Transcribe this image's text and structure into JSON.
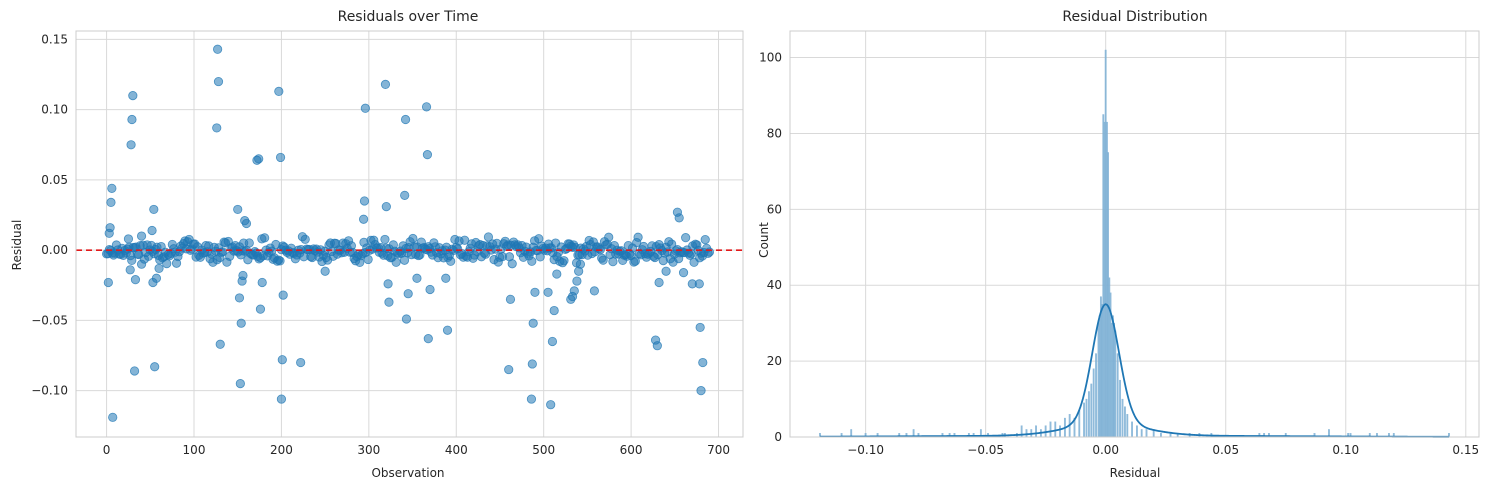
{
  "chart_data": [
    {
      "type": "scatter",
      "title": "Residuals over Time",
      "xlabel": "Observation",
      "ylabel": "Residual",
      "xlim": [
        -35,
        728
      ],
      "ylim": [
        -0.133,
        0.156
      ],
      "xticks": [
        0,
        100,
        200,
        300,
        400,
        500,
        600,
        700
      ],
      "yticks": [
        -0.1,
        -0.05,
        0.0,
        0.05,
        0.1,
        0.15
      ],
      "ytick_labels": [
        "−0.10",
        "−0.05",
        "0.00",
        "0.05",
        "0.10",
        "0.15"
      ],
      "grid": true,
      "reference_line": {
        "y": 0.0,
        "color": "#e41a1c",
        "style": "dashed"
      },
      "point_color": "#1f77b4",
      "outliers": [
        [
          2,
          -0.023
        ],
        [
          3,
          0.012
        ],
        [
          4,
          0.016
        ],
        [
          5,
          0.034
        ],
        [
          6,
          0.044
        ],
        [
          7,
          -0.119
        ],
        [
          25,
          0.008
        ],
        [
          27,
          -0.014
        ],
        [
          28,
          0.075
        ],
        [
          29,
          0.093
        ],
        [
          30,
          0.11
        ],
        [
          32,
          -0.086
        ],
        [
          33,
          -0.021
        ],
        [
          40,
          -0.01
        ],
        [
          52,
          0.014
        ],
        [
          53,
          -0.023
        ],
        [
          54,
          0.029
        ],
        [
          55,
          -0.083
        ],
        [
          57,
          -0.02
        ],
        [
          60,
          -0.013
        ],
        [
          126,
          0.087
        ],
        [
          127,
          0.143
        ],
        [
          128,
          0.12
        ],
        [
          130,
          -0.067
        ],
        [
          150,
          0.029
        ],
        [
          152,
          -0.034
        ],
        [
          153,
          -0.095
        ],
        [
          154,
          -0.052
        ],
        [
          155,
          -0.022
        ],
        [
          156,
          -0.018
        ],
        [
          158,
          0.021
        ],
        [
          160,
          0.019
        ],
        [
          172,
          0.064
        ],
        [
          174,
          0.065
        ],
        [
          176,
          -0.042
        ],
        [
          178,
          -0.023
        ],
        [
          197,
          0.113
        ],
        [
          199,
          0.066
        ],
        [
          200,
          -0.106
        ],
        [
          201,
          -0.078
        ],
        [
          202,
          -0.032
        ],
        [
          222,
          -0.08
        ],
        [
          250,
          -0.015
        ],
        [
          294,
          0.022
        ],
        [
          295,
          0.035
        ],
        [
          296,
          0.101
        ],
        [
          319,
          0.118
        ],
        [
          320,
          0.031
        ],
        [
          322,
          -0.024
        ],
        [
          323,
          -0.037
        ],
        [
          341,
          0.039
        ],
        [
          342,
          0.093
        ],
        [
          343,
          -0.049
        ],
        [
          345,
          -0.031
        ],
        [
          355,
          -0.02
        ],
        [
          366,
          0.102
        ],
        [
          367,
          0.068
        ],
        [
          368,
          -0.063
        ],
        [
          370,
          -0.028
        ],
        [
          390,
          -0.057
        ],
        [
          388,
          -0.02
        ],
        [
          460,
          -0.085
        ],
        [
          462,
          -0.035
        ],
        [
          486,
          -0.106
        ],
        [
          487,
          -0.081
        ],
        [
          488,
          -0.052
        ],
        [
          490,
          -0.03
        ],
        [
          508,
          -0.11
        ],
        [
          510,
          -0.065
        ],
        [
          512,
          -0.043
        ],
        [
          515,
          -0.017
        ],
        [
          505,
          -0.03
        ],
        [
          531,
          -0.035
        ],
        [
          533,
          -0.033
        ],
        [
          535,
          -0.029
        ],
        [
          538,
          -0.022
        ],
        [
          540,
          -0.015
        ],
        [
          542,
          -0.01
        ],
        [
          558,
          -0.029
        ],
        [
          628,
          -0.064
        ],
        [
          630,
          -0.068
        ],
        [
          632,
          -0.023
        ],
        [
          640,
          -0.015
        ],
        [
          653,
          0.027
        ],
        [
          655,
          0.023
        ],
        [
          660,
          -0.016
        ],
        [
          670,
          -0.024
        ],
        [
          678,
          -0.024
        ],
        [
          679,
          -0.055
        ],
        [
          680,
          -0.1
        ],
        [
          682,
          -0.08
        ]
      ],
      "bulk_range": [
        0,
        690
      ],
      "bulk_spread": 0.004
    },
    {
      "type": "histogram",
      "title": "Residual Distribution",
      "xlabel": "Residual",
      "ylabel": "Count",
      "xlim": [
        -0.1315,
        0.1555
      ],
      "ylim": [
        0,
        107
      ],
      "xticks": [
        -0.1,
        -0.05,
        0.0,
        0.05,
        0.1,
        0.15
      ],
      "xtick_labels": [
        "−0.10",
        "−0.05",
        "0.00",
        "0.05",
        "0.10",
        "0.15"
      ],
      "yticks": [
        0,
        20,
        40,
        60,
        80,
        100
      ],
      "grid": true,
      "bar_color": "#7eb0d5",
      "kde_color": "#1f77b4",
      "bins": [
        [
          -0.119,
          1
        ],
        [
          -0.11,
          1
        ],
        [
          -0.106,
          2
        ],
        [
          -0.1,
          1
        ],
        [
          -0.095,
          1
        ],
        [
          -0.086,
          1
        ],
        [
          -0.083,
          1
        ],
        [
          -0.08,
          2
        ],
        [
          -0.078,
          1
        ],
        [
          -0.068,
          1
        ],
        [
          -0.065,
          1
        ],
        [
          -0.063,
          1
        ],
        [
          -0.057,
          1
        ],
        [
          -0.055,
          1
        ],
        [
          -0.052,
          2
        ],
        [
          -0.049,
          1
        ],
        [
          -0.043,
          1
        ],
        [
          -0.042,
          1
        ],
        [
          -0.037,
          1
        ],
        [
          -0.035,
          3
        ],
        [
          -0.033,
          2
        ],
        [
          -0.031,
          2
        ],
        [
          -0.029,
          3
        ],
        [
          -0.027,
          2
        ],
        [
          -0.025,
          3
        ],
        [
          -0.023,
          4
        ],
        [
          -0.021,
          4
        ],
        [
          -0.019,
          3
        ],
        [
          -0.017,
          5
        ],
        [
          -0.015,
          6
        ],
        [
          -0.013,
          5
        ],
        [
          -0.011,
          7
        ],
        [
          -0.009,
          9
        ],
        [
          -0.008,
          10
        ],
        [
          -0.007,
          12
        ],
        [
          -0.006,
          14
        ],
        [
          -0.005,
          18
        ],
        [
          -0.004,
          22
        ],
        [
          -0.003,
          30
        ],
        [
          -0.0025,
          32
        ],
        [
          -0.002,
          37
        ],
        [
          -0.0015,
          35
        ],
        [
          -0.001,
          85
        ],
        [
          -0.0005,
          83
        ],
        [
          0.0,
          102
        ],
        [
          0.0005,
          83
        ],
        [
          0.001,
          75
        ],
        [
          0.0015,
          42
        ],
        [
          0.002,
          38
        ],
        [
          0.0025,
          30
        ],
        [
          0.003,
          32
        ],
        [
          0.0035,
          30
        ],
        [
          0.004,
          28
        ],
        [
          0.005,
          22
        ],
        [
          0.006,
          15
        ],
        [
          0.007,
          10
        ],
        [
          0.008,
          8
        ],
        [
          0.009,
          6
        ],
        [
          0.011,
          4
        ],
        [
          0.013,
          3
        ],
        [
          0.015,
          2
        ],
        [
          0.017,
          2
        ],
        [
          0.02,
          2
        ],
        [
          0.023,
          1
        ],
        [
          0.027,
          1
        ],
        [
          0.03,
          1
        ],
        [
          0.035,
          1
        ],
        [
          0.039,
          1
        ],
        [
          0.044,
          1
        ],
        [
          0.064,
          1
        ],
        [
          0.066,
          1
        ],
        [
          0.068,
          1
        ],
        [
          0.075,
          1
        ],
        [
          0.087,
          1
        ],
        [
          0.093,
          2
        ],
        [
          0.101,
          1
        ],
        [
          0.102,
          1
        ],
        [
          0.11,
          1
        ],
        [
          0.113,
          1
        ],
        [
          0.118,
          1
        ],
        [
          0.12,
          1
        ],
        [
          0.143,
          1
        ]
      ],
      "kde_peak": 35
    }
  ]
}
